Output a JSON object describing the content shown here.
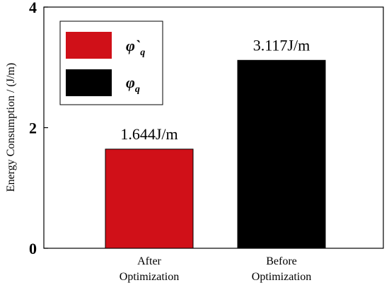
{
  "chart_data": {
    "type": "bar",
    "categories": [
      [
        "After",
        "Optimization"
      ],
      [
        "Before",
        "Optimization"
      ]
    ],
    "values": [
      1.644,
      3.117
    ],
    "data_labels": [
      "1.644J/m",
      "3.117J/m"
    ],
    "colors": [
      "#d01018",
      "#000000"
    ],
    "ylabel": "Energy Consumption / (J/m)",
    "xlabel": "",
    "ylim": [
      0,
      4
    ],
    "yticks": [
      "0",
      "2",
      "4"
    ],
    "legend": {
      "placement": "top-left",
      "entries": [
        {
          "symbol": "φ`",
          "sub": "q",
          "color": "#d01018"
        },
        {
          "symbol": "φ",
          "sub": "q",
          "color": "#000000"
        }
      ]
    },
    "grid": false
  }
}
